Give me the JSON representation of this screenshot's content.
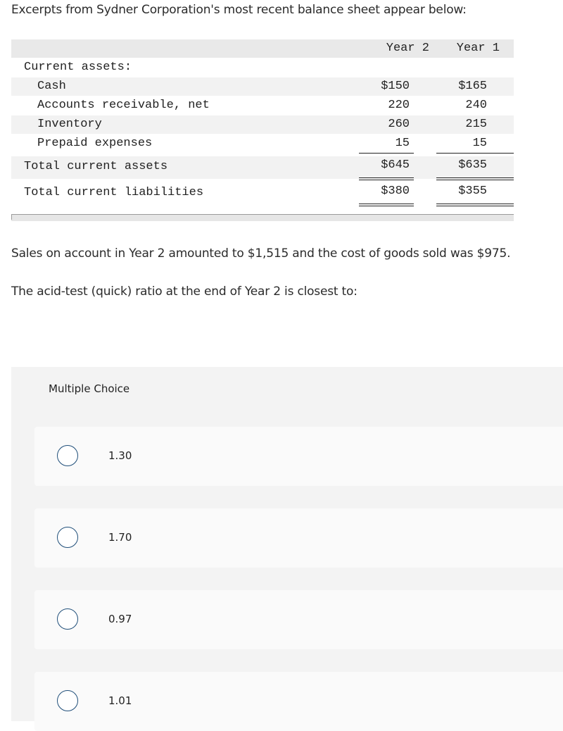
{
  "intro": "Excerpts from Sydner Corporation's most recent balance sheet appear below:",
  "table": {
    "headers": [
      "Year 2",
      "Year 1"
    ],
    "section_label": "Current assets:",
    "rows": [
      {
        "label": "Cash",
        "year2": "$150",
        "year1": "$165"
      },
      {
        "label": "Accounts receivable, net",
        "year2": "220",
        "year1": "240"
      },
      {
        "label": "Inventory",
        "year2": "260",
        "year1": "215"
      },
      {
        "label": "Prepaid expenses",
        "year2": "15",
        "year1": "15"
      }
    ],
    "total_assets": {
      "label": "Total current assets",
      "year2": "$645",
      "year1": "$635"
    },
    "total_liabilities": {
      "label": "Total current liabilities",
      "year2": "$380",
      "year1": "$355"
    }
  },
  "question": {
    "line1": "Sales on account in Year 2 amounted to $1,515 and the cost of goods sold was $975.",
    "line2": "The acid-test (quick) ratio at the end of Year 2 is closest to:"
  },
  "multiple_choice": {
    "title": "Multiple Choice",
    "options": [
      "1.30",
      "1.70",
      "0.97",
      "1.01"
    ]
  },
  "colors": {
    "radio_border": "#1f4e79",
    "panel_bg": "#f3f3f3",
    "option_bg": "#fafafa"
  }
}
